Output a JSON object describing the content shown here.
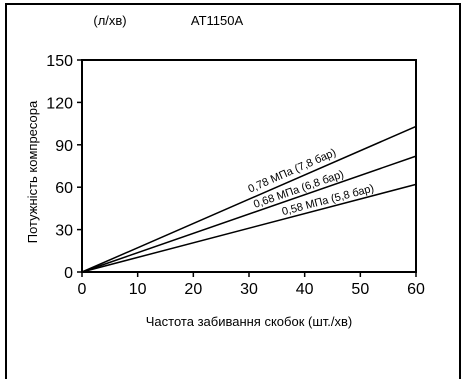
{
  "chart_data": {
    "type": "line",
    "title": "AT1150A",
    "unit_label": "(л/хв)",
    "xlabel": "Частота забивання скобок (шт./хв)",
    "ylabel": "Потужність компресора",
    "xlim": [
      0,
      60
    ],
    "ylim": [
      0,
      150
    ],
    "x_ticks": [
      0,
      10,
      20,
      30,
      40,
      50,
      60
    ],
    "y_ticks": [
      0,
      30,
      60,
      90,
      120,
      150
    ],
    "grid": false,
    "series": [
      {
        "name": "0,78 МПа (7,8 бар)",
        "x": [
          0,
          60
        ],
        "y": [
          0,
          103
        ]
      },
      {
        "name": "0,68 МПа (6,8 бар)",
        "x": [
          0,
          60
        ],
        "y": [
          0,
          82
        ]
      },
      {
        "name": "0,58 МПа (5,8 бар)",
        "x": [
          0,
          60
        ],
        "y": [
          0,
          62
        ]
      }
    ]
  }
}
